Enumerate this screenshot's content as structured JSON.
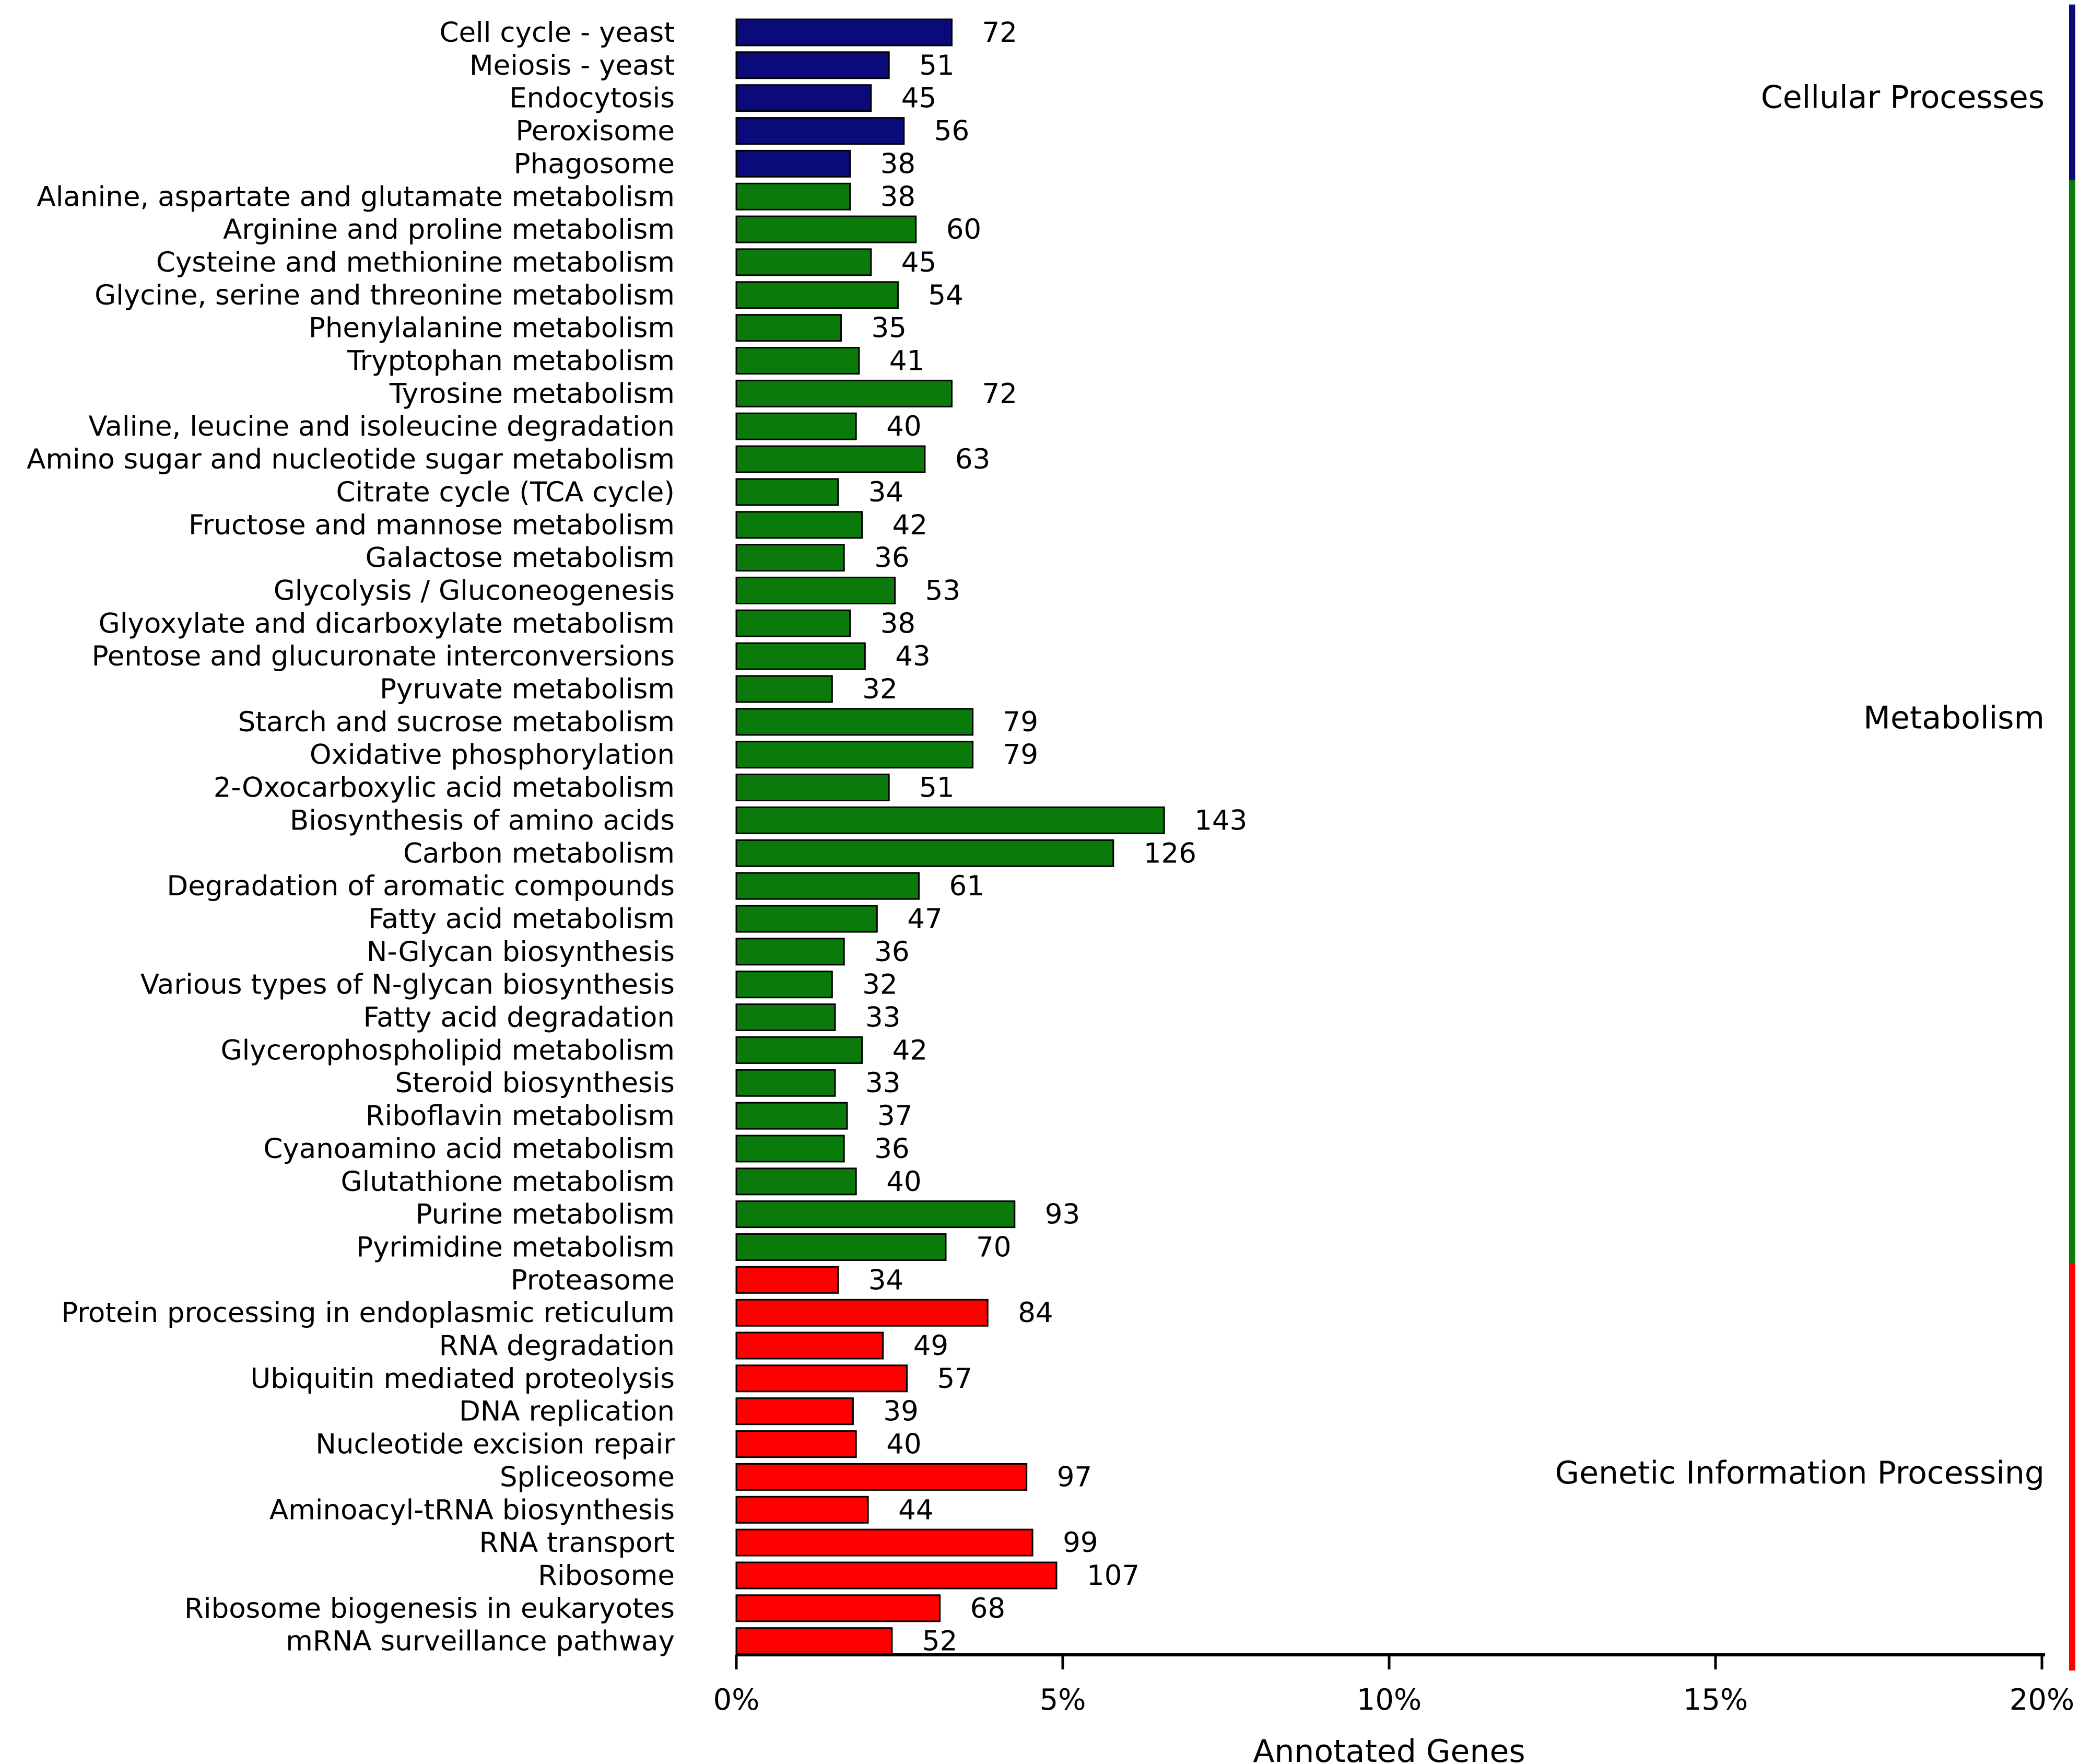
{
  "chart_data": {
    "type": "bar",
    "orientation": "horizontal",
    "xlabel": "Annotated Genes",
    "x_ticks": [
      "0%",
      "5%",
      "10%",
      "15%",
      "20%"
    ],
    "xlim": [
      0,
      20
    ],
    "value_unit": "gene count",
    "percent_per_gene": 0.04583,
    "colors": {
      "Cellular Processes": "#0a0a7a",
      "Metabolism": "#0a7a0a",
      "Genetic Information Processing": "#ff0000"
    },
    "groups": [
      {
        "name": "Cellular Processes",
        "categories": [
          "Cell cycle - yeast",
          "Meiosis - yeast",
          "Endocytosis",
          "Peroxisome",
          "Phagosome"
        ],
        "values": [
          72,
          51,
          45,
          56,
          38
        ]
      },
      {
        "name": "Metabolism",
        "categories": [
          "Alanine, aspartate and glutamate metabolism",
          "Arginine and proline metabolism",
          "Cysteine and methionine metabolism",
          "Glycine, serine and threonine metabolism",
          "Phenylalanine metabolism",
          "Tryptophan metabolism",
          "Tyrosine metabolism",
          "Valine, leucine and isoleucine degradation",
          "Amino sugar and nucleotide sugar metabolism",
          "Citrate cycle (TCA cycle)",
          "Fructose and mannose metabolism",
          "Galactose metabolism",
          "Glycolysis / Gluconeogenesis",
          "Glyoxylate and dicarboxylate metabolism",
          "Pentose and glucuronate interconversions",
          "Pyruvate metabolism",
          "Starch and sucrose metabolism",
          "Oxidative phosphorylation",
          "2-Oxocarboxylic acid metabolism",
          "Biosynthesis of amino acids",
          "Carbon metabolism",
          "Degradation of aromatic compounds",
          "Fatty acid metabolism",
          "N-Glycan biosynthesis",
          "Various types of N-glycan biosynthesis",
          "Fatty acid degradation",
          "Glycerophospholipid metabolism",
          "Steroid biosynthesis",
          "Riboflavin metabolism",
          "Cyanoamino acid metabolism",
          "Glutathione metabolism",
          "Purine metabolism",
          "Pyrimidine metabolism"
        ],
        "values": [
          38,
          60,
          45,
          54,
          35,
          41,
          72,
          40,
          63,
          34,
          42,
          36,
          53,
          38,
          43,
          32,
          79,
          79,
          51,
          143,
          126,
          61,
          47,
          36,
          32,
          33,
          42,
          33,
          37,
          36,
          40,
          93,
          70
        ]
      },
      {
        "name": "Genetic Information Processing",
        "categories": [
          "Proteasome",
          "Protein processing in endoplasmic reticulum",
          "RNA degradation",
          "Ubiquitin mediated proteolysis",
          "DNA replication",
          "Nucleotide excision repair",
          "Spliceosome",
          "Aminoacyl-tRNA biosynthesis",
          "RNA transport",
          "Ribosome",
          "Ribosome biogenesis in eukaryotes",
          "mRNA surveillance pathway"
        ],
        "values": [
          34,
          84,
          49,
          57,
          39,
          40,
          97,
          44,
          99,
          107,
          68,
          52
        ]
      }
    ]
  }
}
